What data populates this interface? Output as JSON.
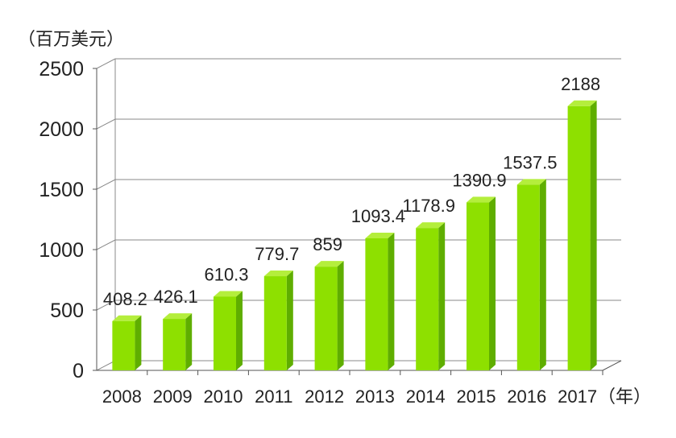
{
  "chart_data": {
    "type": "bar",
    "y_unit_label": "（百万美元）",
    "x_unit_label": "（年）",
    "categories": [
      "2008",
      "2009",
      "2010",
      "2011",
      "2012",
      "2013",
      "2014",
      "2015",
      "2016",
      "2017"
    ],
    "values": [
      408.2,
      426.1,
      610.3,
      779.7,
      859,
      1093.4,
      1178.9,
      1390.9,
      1537.5,
      2188
    ],
    "value_labels": [
      "408.2",
      "426.1",
      "610.3",
      "779.7",
      "859",
      "1093.4",
      "1178.9",
      "1390.9",
      "1537.5",
      "2188"
    ],
    "yticks": [
      "0",
      "500",
      "1000",
      "1500",
      "2000",
      "2500"
    ],
    "ylim": [
      0,
      2500
    ],
    "grid": true,
    "bar_color": "#8ee000",
    "bar_top_color": "#b4ee3c",
    "bar_side_color": "#5fae00"
  }
}
